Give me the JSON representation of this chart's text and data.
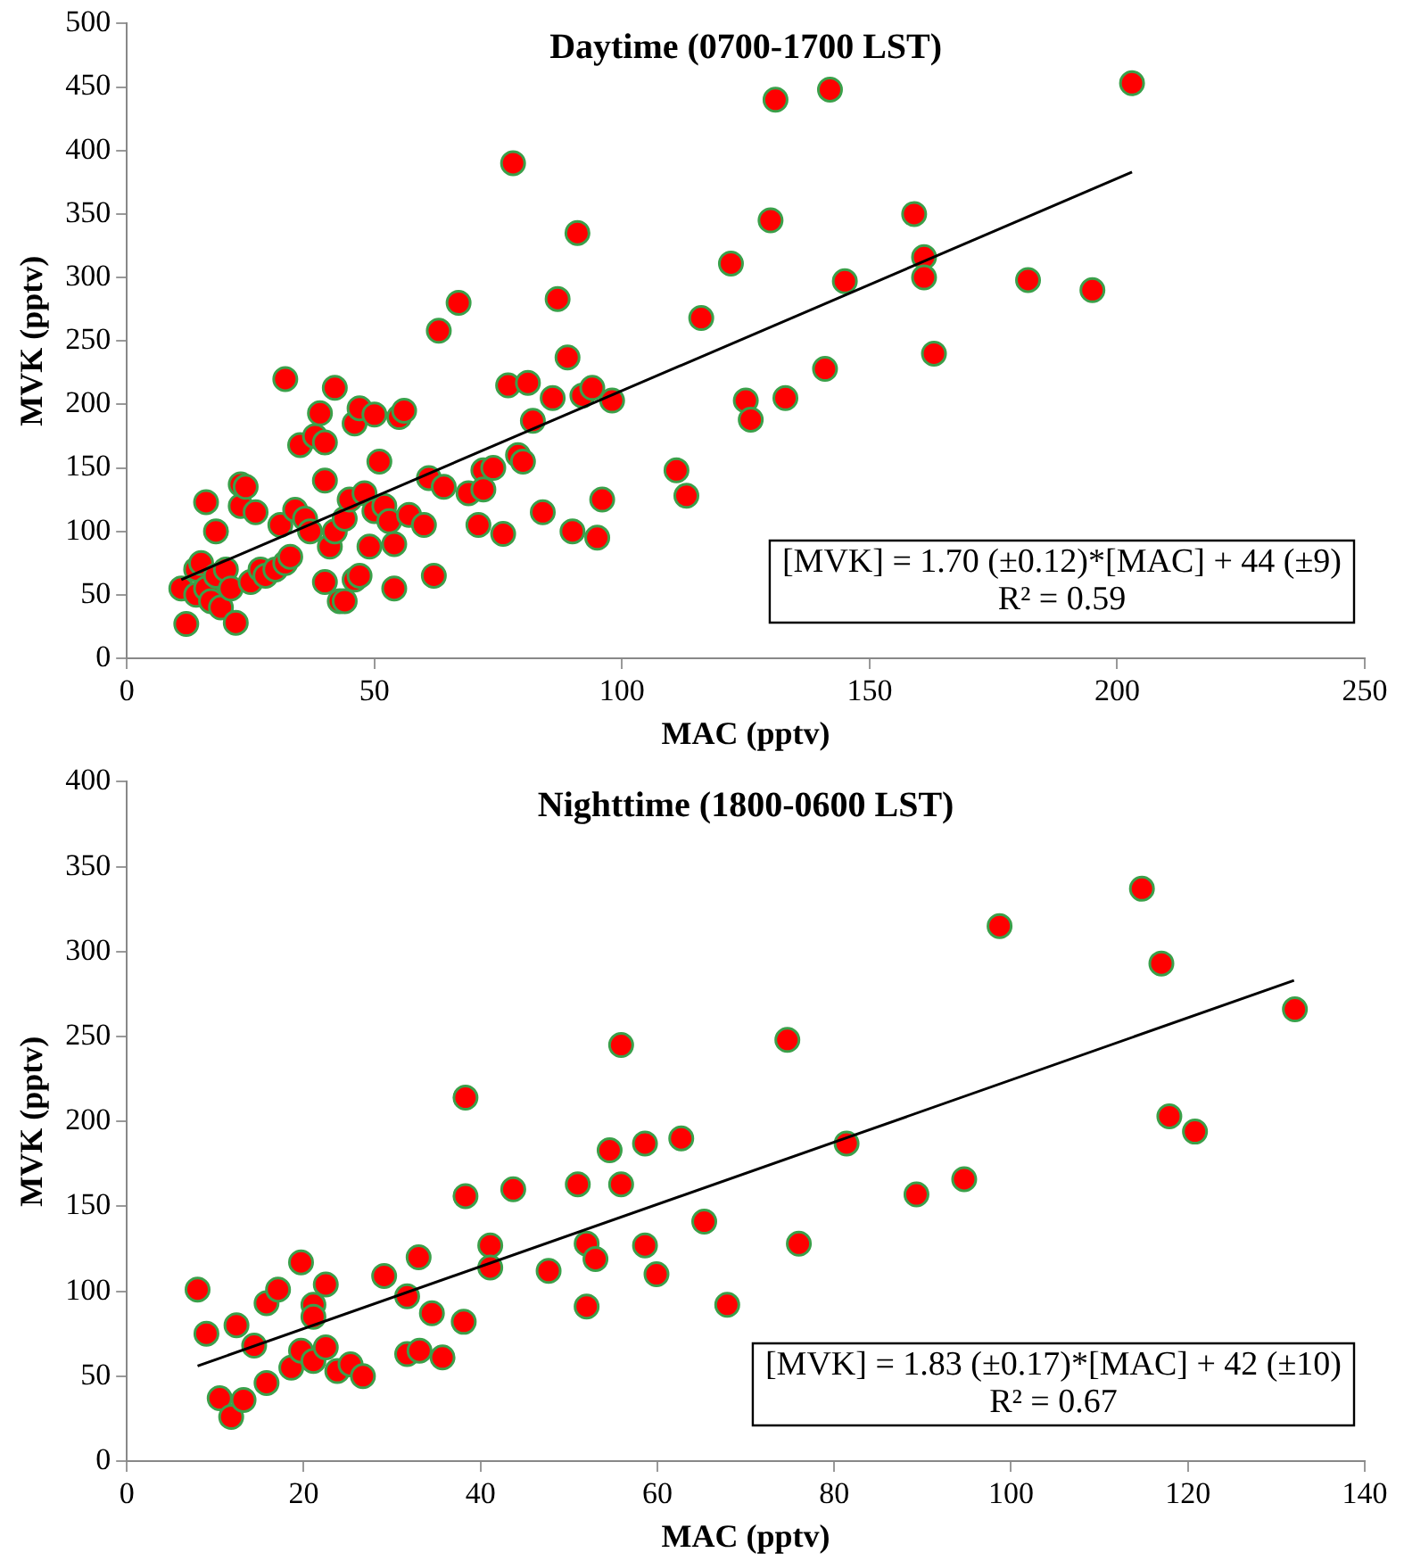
{
  "chart_data": [
    {
      "type": "scatter",
      "title": "Daytime (0700-1700 LST)",
      "xlabel": "MAC (pptv)",
      "ylabel": "MVK (pptv)",
      "xlim": [
        0,
        250
      ],
      "xticks": [
        0,
        50,
        100,
        150,
        200,
        250
      ],
      "ylim": [
        0,
        500
      ],
      "yticks": [
        0,
        50,
        100,
        150,
        200,
        250,
        300,
        350,
        400,
        450,
        500
      ],
      "grid": false,
      "legend": false,
      "marker": "circle",
      "annotations": [
        "[MVK] = 1.70 (±0.12)*[MAC] + 44 (±9)",
        "R² = 0.59"
      ],
      "series": [
        {
          "color": "#ff0000",
          "x": [
            11,
            12,
            14,
            14,
            15,
            16,
            16,
            17,
            18,
            18,
            19,
            20,
            21,
            22,
            23,
            23,
            24,
            25,
            26,
            27,
            28,
            30,
            31,
            32,
            32,
            33,
            34,
            35,
            36,
            37,
            38,
            39,
            40,
            40,
            40,
            41,
            42,
            42,
            43,
            44,
            44,
            45,
            46,
            46,
            47,
            47,
            48,
            49,
            50,
            50,
            51,
            52,
            53,
            54,
            54,
            55,
            56,
            57,
            60,
            61,
            62,
            63,
            64,
            67,
            69,
            71,
            72,
            72,
            74,
            76,
            77,
            78,
            79,
            80,
            81,
            82,
            84,
            86,
            87,
            89,
            90,
            91,
            92,
            94,
            95,
            96,
            98,
            111,
            113,
            116,
            122,
            125,
            126,
            130,
            131,
            133,
            141,
            142,
            145,
            159,
            161,
            161,
            163,
            182,
            195,
            203
          ],
          "values": [
            55,
            27,
            50,
            70,
            75,
            123,
            55,
            45,
            65,
            100,
            40,
            70,
            55,
            28,
            120,
            137,
            135,
            60,
            115,
            70,
            65,
            70,
            105,
            220,
            75,
            80,
            117,
            168,
            110,
            100,
            175,
            193,
            60,
            170,
            140,
            88,
            213,
            100,
            45,
            45,
            110,
            125,
            62,
            185,
            197,
            65,
            130,
            88,
            192,
            116,
            155,
            120,
            108,
            90,
            55,
            190,
            195,
            113,
            105,
            142,
            65,
            258,
            135,
            280,
            130,
            105,
            148,
            133,
            150,
            98,
            215,
            390,
            160,
            155,
            217,
            187,
            115,
            205,
            283,
            237,
            100,
            335,
            207,
            213,
            95,
            125,
            203,
            148,
            128,
            268,
            311,
            203,
            188,
            345,
            440,
            205,
            228,
            448,
            297,
            350,
            316,
            300,
            240,
            298,
            290,
            453
          ]
        },
        {
          "type": "line",
          "color": "#000000",
          "marker": "none",
          "x": [
            11,
            203
          ],
          "values": [
            62,
            383
          ]
        }
      ]
    },
    {
      "type": "scatter",
      "title": "Nighttime (1800-0600 LST)",
      "xlabel": "MAC (pptv)",
      "ylabel": "MVK (pptv)",
      "xlim": [
        0,
        140
      ],
      "xticks": [
        0,
        20,
        40,
        60,
        80,
        100,
        120,
        140
      ],
      "ylim": [
        0,
        400
      ],
      "yticks": [
        0,
        50,
        100,
        150,
        200,
        250,
        300,
        350,
        400
      ],
      "grid": false,
      "legend": false,
      "marker": "circle",
      "annotations": [
        "[MVK] = 1.83 (±0.17)*[MAC] + 42 (±10)",
        "R² = 0.67"
      ],
      "series": [
        {
          "color": "#ff0000",
          "x": [
            8,
            9,
            12.4,
            14.4,
            15.8,
            17.1,
            19.7,
            21.1,
            21.1,
            22.5,
            29.1,
            31.7,
            33,
            34.5,
            38.1,
            38.3,
            38.3,
            41.1,
            41.1,
            43.7,
            47.7,
            51,
            52,
            52,
            53,
            54.6,
            55.9,
            55.9,
            58.6,
            58.6,
            59.9,
            62.7,
            65.3,
            67.9,
            74.7,
            76,
            81.4,
            89.3,
            94.7,
            98.7,
            114.8,
            117,
            117.9,
            120.8,
            132.1,
            10.5,
            11.8,
            13.2,
            15.8,
            18.6,
            19.7,
            21.1,
            22.5,
            23.8,
            25.3,
            26.7,
            31.7,
            33.1,
            35.7
          ],
          "values": [
            101,
            75,
            80,
            68,
            93,
            101,
            117,
            92,
            85,
            104,
            109,
            97,
            120,
            87,
            82,
            214,
            156,
            127,
            114,
            160,
            112,
            163,
            128,
            91,
            119,
            183,
            245,
            163,
            187,
            127,
            110,
            190,
            141,
            92,
            248,
            128,
            187,
            157,
            166,
            315,
            337,
            293,
            203,
            194,
            266,
            37,
            26,
            36,
            46,
            55,
            65,
            59,
            67,
            53,
            57,
            50,
            63,
            65,
            61
          ]
        },
        {
          "type": "line",
          "color": "#000000",
          "marker": "none",
          "x": [
            8,
            132
          ],
          "values": [
            56,
            283
          ]
        }
      ]
    }
  ]
}
